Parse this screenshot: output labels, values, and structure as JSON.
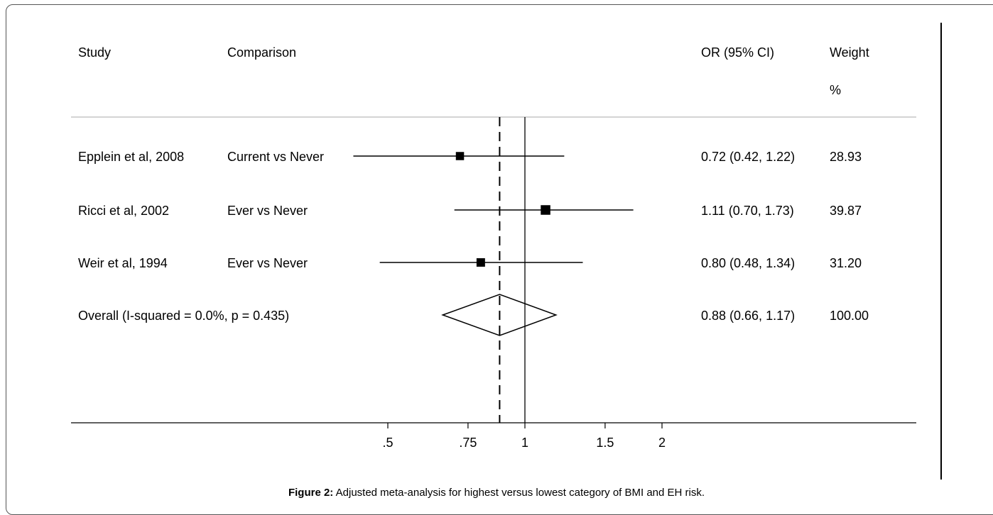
{
  "header": {
    "study": "Study",
    "comparison": "Comparison",
    "or_ci": "OR (95% CI)",
    "weight": "Weight",
    "weight_unit": "%"
  },
  "caption": {
    "label": "Figure 2:",
    "text": " Adjusted meta-analysis for highest versus lowest category of BMI and EH risk."
  },
  "chart_data": {
    "type": "forest",
    "scale": "log",
    "xlim": [
      0.4,
      2.4
    ],
    "x_ticks": [
      {
        "value": 0.5,
        "label": ".5"
      },
      {
        "value": 0.75,
        "label": ".75"
      },
      {
        "value": 1,
        "label": "1"
      },
      {
        "value": 1.5,
        "label": "1.5"
      },
      {
        "value": 2,
        "label": "2"
      }
    ],
    "null_line": 1,
    "studies": [
      {
        "study": "Epplein et al, 2008",
        "comparison": "Current vs Never",
        "or": 0.72,
        "lo": 0.42,
        "hi": 1.22,
        "or_text": "0.72 (0.42, 1.22)",
        "weight": 28.93,
        "weight_text": "28.93"
      },
      {
        "study": "Ricci et al, 2002",
        "comparison": "Ever vs Never",
        "or": 1.11,
        "lo": 0.7,
        "hi": 1.73,
        "or_text": "1.11 (0.70, 1.73)",
        "weight": 39.87,
        "weight_text": "39.87"
      },
      {
        "study": "Weir et al, 1994",
        "comparison": "Ever vs Never",
        "or": 0.8,
        "lo": 0.48,
        "hi": 1.34,
        "or_text": "0.80 (0.48, 1.34)",
        "weight": 31.2,
        "weight_text": "31.20"
      }
    ],
    "overall": {
      "label": "Overall  (I-squared = 0.0%, p = 0.435)",
      "or": 0.88,
      "lo": 0.66,
      "hi": 1.17,
      "or_text": "0.88 (0.66, 1.17)",
      "weight_text": "100.00"
    }
  }
}
